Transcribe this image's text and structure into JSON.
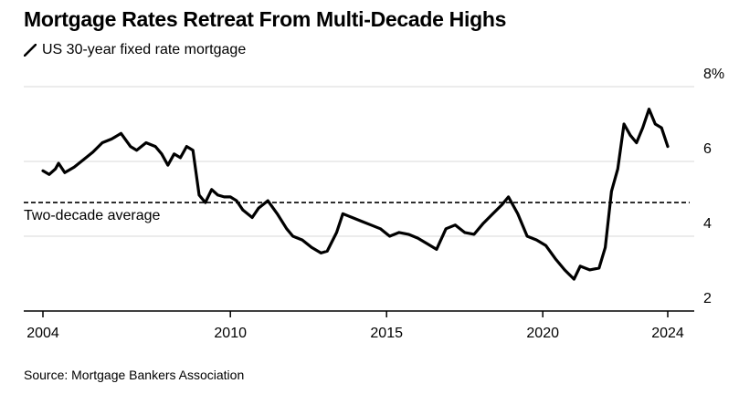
{
  "title": "Mortgage Rates Retreat From Multi-Decade Highs",
  "legend": {
    "label": "US 30-year fixed rate mortgage",
    "icon": "diagonal-line-icon"
  },
  "source": "Source: Mortgage Bankers Association",
  "colors": {
    "line": "#000000",
    "grid": "#d9d9d9",
    "axis": "#000000",
    "text": "#000000"
  },
  "chart_data": {
    "type": "line",
    "title": "Mortgage Rates Retreat From Multi-Decade Highs",
    "xlabel": "",
    "ylabel": "",
    "xlim": [
      2004,
      2024.9
    ],
    "ylim": [
      2,
      8
    ],
    "x_ticks": [
      2004,
      2010,
      2015,
      2020,
      2024
    ],
    "x_tick_labels": [
      "2004",
      "2010",
      "2015",
      "2020",
      "2024"
    ],
    "y_ticks": [
      2,
      4,
      6,
      8
    ],
    "y_tick_labels": [
      "2",
      "4",
      "6",
      "8%"
    ],
    "grid": true,
    "legend_position": "top-left",
    "reference_line": {
      "label": "Two-decade average",
      "value": 4.9
    },
    "series": [
      {
        "name": "US 30-year fixed rate mortgage",
        "x": [
          2004.0,
          2004.2,
          2004.4,
          2004.5,
          2004.7,
          2005.0,
          2005.3,
          2005.6,
          2005.9,
          2006.2,
          2006.5,
          2006.8,
          2007.0,
          2007.3,
          2007.6,
          2007.8,
          2008.0,
          2008.2,
          2008.4,
          2008.6,
          2008.8,
          2009.0,
          2009.2,
          2009.4,
          2009.6,
          2009.8,
          2010.0,
          2010.2,
          2010.4,
          2010.7,
          2010.9,
          2011.2,
          2011.5,
          2011.8,
          2012.0,
          2012.3,
          2012.6,
          2012.9,
          2013.1,
          2013.4,
          2013.6,
          2013.9,
          2014.2,
          2014.5,
          2014.8,
          2015.1,
          2015.4,
          2015.7,
          2016.0,
          2016.3,
          2016.6,
          2016.9,
          2017.2,
          2017.5,
          2017.8,
          2018.1,
          2018.4,
          2018.7,
          2018.9,
          2019.2,
          2019.5,
          2019.8,
          2020.1,
          2020.4,
          2020.7,
          2021.0,
          2021.2,
          2021.5,
          2021.8,
          2022.0,
          2022.2,
          2022.4,
          2022.6,
          2022.8,
          2023.0,
          2023.2,
          2023.4,
          2023.6,
          2023.8,
          2024.0
        ],
        "values": [
          5.75,
          5.65,
          5.8,
          5.95,
          5.7,
          5.85,
          6.05,
          6.25,
          6.5,
          6.6,
          6.75,
          6.4,
          6.3,
          6.5,
          6.4,
          6.2,
          5.9,
          6.2,
          6.1,
          6.4,
          6.3,
          5.1,
          4.9,
          5.25,
          5.1,
          5.05,
          5.05,
          4.95,
          4.7,
          4.5,
          4.75,
          4.95,
          4.6,
          4.2,
          4.0,
          3.9,
          3.7,
          3.55,
          3.6,
          4.1,
          4.6,
          4.5,
          4.4,
          4.3,
          4.2,
          4.0,
          4.1,
          4.05,
          3.95,
          3.8,
          3.65,
          4.2,
          4.3,
          4.1,
          4.05,
          4.35,
          4.6,
          4.85,
          5.05,
          4.6,
          4.0,
          3.9,
          3.75,
          3.4,
          3.1,
          2.85,
          3.2,
          3.1,
          3.15,
          3.7,
          5.2,
          5.8,
          7.0,
          6.7,
          6.5,
          6.9,
          7.4,
          7.0,
          6.9,
          6.4
        ]
      }
    ]
  }
}
